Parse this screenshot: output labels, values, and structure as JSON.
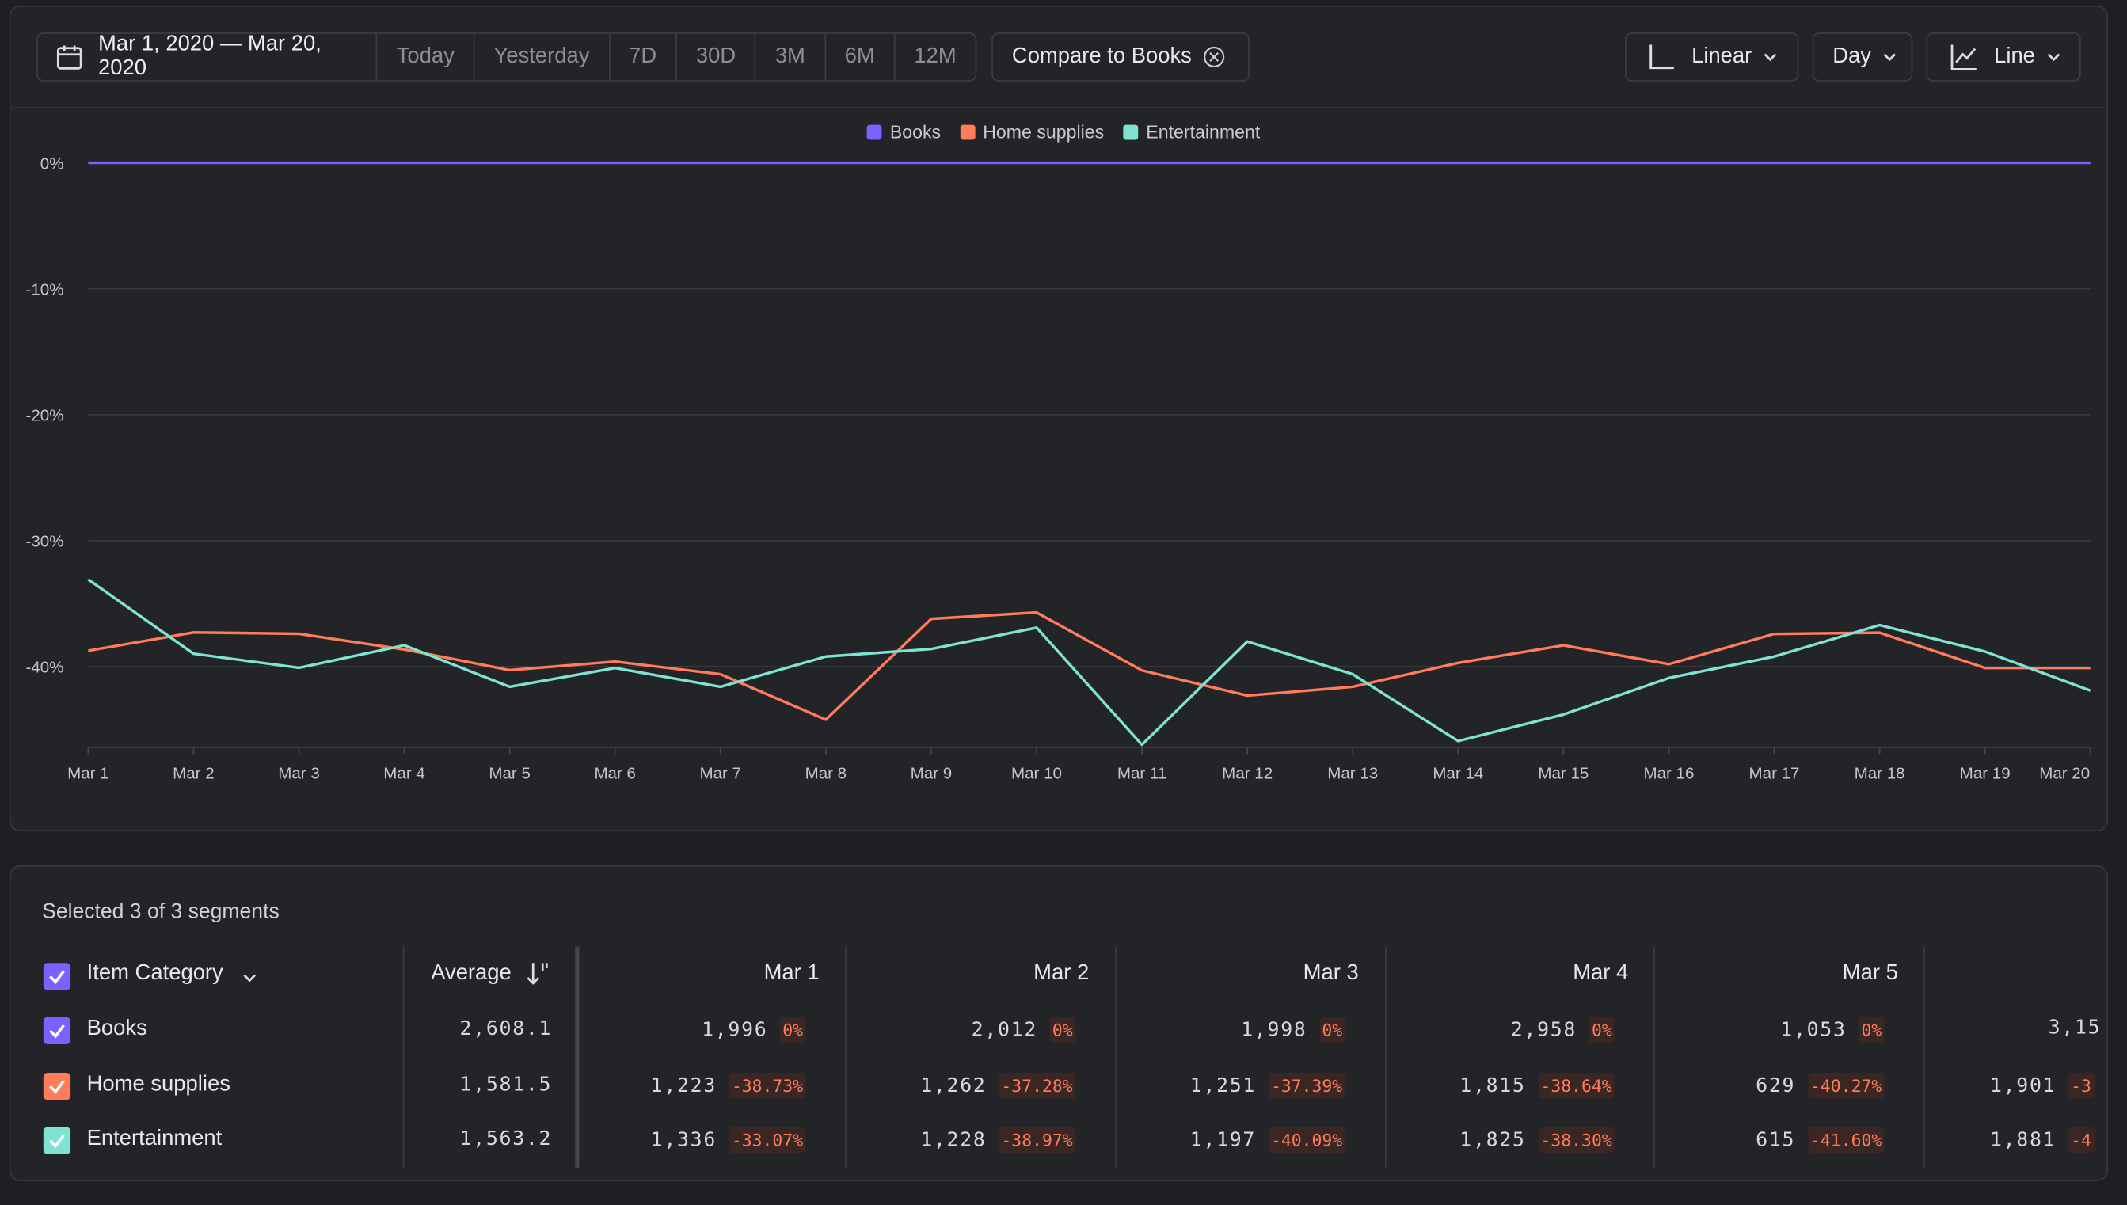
{
  "toolbar": {
    "date_range": "Mar 1, 2020 — Mar 20, 2020",
    "ranges": [
      "Today",
      "Yesterday",
      "7D",
      "30D",
      "3M",
      "6M",
      "12M"
    ],
    "compare": "Compare to Books",
    "scale": "Linear",
    "interval": "Day",
    "chart_style": "Line"
  },
  "chart_data": {
    "type": "line",
    "categories": [
      "Mar 1",
      "Mar 2",
      "Mar 3",
      "Mar 4",
      "Mar 5",
      "Mar 6",
      "Mar 7",
      "Mar 8",
      "Mar 9",
      "Mar 10",
      "Mar 11",
      "Mar 12",
      "Mar 13",
      "Mar 14",
      "Mar 15",
      "Mar 16",
      "Mar 17",
      "Mar 18",
      "Mar 19",
      "Mar 20"
    ],
    "series": [
      {
        "name": "Books",
        "color": "#7b61ff",
        "values": [
          0,
          0,
          0,
          0,
          0,
          0,
          0,
          0,
          0,
          0,
          0,
          0,
          0,
          0,
          0,
          0,
          0,
          0,
          0,
          0
        ]
      },
      {
        "name": "Home supplies",
        "color": "#ff7b5a",
        "values": [
          -38.73,
          -37.28,
          -37.39,
          -38.64,
          -40.27,
          -39.6,
          -40.6,
          -44.2,
          -36.2,
          -35.7,
          -40.3,
          -42.3,
          -41.6,
          -39.7,
          -38.3,
          -39.8,
          -37.4,
          -37.3,
          -40.1,
          -40.1
        ]
      },
      {
        "name": "Entertainment",
        "color": "#7fe3d2",
        "values": [
          -33.07,
          -38.97,
          -40.09,
          -38.3,
          -41.6,
          -40.1,
          -41.6,
          -39.2,
          -38.6,
          -36.9,
          -46.2,
          -38.0,
          -40.6,
          -45.9,
          -43.8,
          -40.9,
          -39.2,
          -36.7,
          -38.8,
          -41.9
        ]
      }
    ],
    "ylim": [
      -46.4,
      0
    ],
    "yticks": [
      {
        "value": 0,
        "label": "0%"
      },
      {
        "value": -10,
        "label": "-10%"
      },
      {
        "value": -20,
        "label": "-20%"
      },
      {
        "value": -30,
        "label": "-30%"
      },
      {
        "value": -40,
        "label": "-40%"
      }
    ],
    "grid": true,
    "legend": "top"
  },
  "table": {
    "caption": "Selected 3 of 3 segments",
    "group_header": "Item Category",
    "average_header": "Average",
    "date_headers": [
      "Mar 1",
      "Mar 2",
      "Mar 3",
      "Mar 4",
      "Mar 5"
    ],
    "rows": [
      {
        "name": "Books",
        "average": "2,608.1",
        "cells": [
          [
            "1,996",
            "0%"
          ],
          [
            "2,012",
            "0%"
          ],
          [
            "1,998",
            "0%"
          ],
          [
            "2,958",
            "0%"
          ],
          [
            "1,053",
            "0%"
          ]
        ],
        "clipped": [
          "3,15"
        ]
      },
      {
        "name": "Home supplies",
        "average": "1,581.5",
        "cells": [
          [
            "1,223",
            "-38.73%"
          ],
          [
            "1,262",
            "-37.28%"
          ],
          [
            "1,251",
            "-37.39%"
          ],
          [
            "1,815",
            "-38.64%"
          ],
          [
            "629",
            "-40.27%"
          ]
        ],
        "clipped": [
          "1,901",
          "-3"
        ]
      },
      {
        "name": "Entertainment",
        "average": "1,563.2",
        "cells": [
          [
            "1,336",
            "-33.07%"
          ],
          [
            "1,228",
            "-38.97%"
          ],
          [
            "1,197",
            "-40.09%"
          ],
          [
            "1,825",
            "-38.30%"
          ],
          [
            "615",
            "-41.60%"
          ]
        ],
        "clipped": [
          "1,881",
          "-4"
        ]
      }
    ]
  }
}
